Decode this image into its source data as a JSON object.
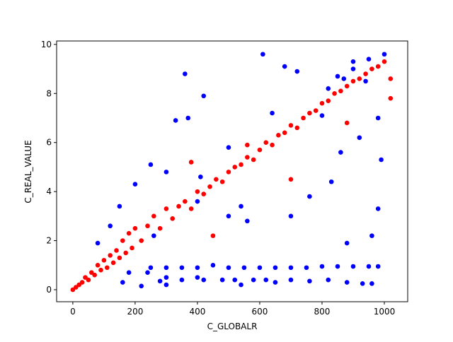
{
  "chart_data": {
    "type": "scatter",
    "x_label": "C_GLOBALR",
    "y_label": "C_REAL_VALUE",
    "xlim": [
      -52,
      1075
    ],
    "ylim": [
      -0.49,
      10.14
    ],
    "xticks": [
      0,
      200,
      400,
      600,
      800,
      1000
    ],
    "yticks": [
      0,
      2,
      4,
      6,
      8,
      10
    ],
    "series": [
      {
        "color": "#0000ff",
        "x": [
          360,
          610,
          420,
          370,
          330,
          680,
          720,
          900,
          1000,
          980,
          990,
          960,
          980,
          250,
          150,
          120,
          80,
          200,
          300,
          410,
          500,
          540,
          560,
          700,
          760,
          830,
          880,
          860,
          920,
          940,
          850,
          800,
          640,
          500,
          400,
          260,
          180,
          160,
          220,
          300,
          400,
          450,
          250,
          300,
          350,
          400,
          500,
          550,
          600,
          650,
          700,
          750,
          800,
          850,
          900,
          950,
          980,
          350,
          420,
          480,
          520,
          580,
          620,
          700,
          760,
          820,
          880,
          930,
          960,
          650,
          540,
          300,
          240,
          280,
          900,
          950,
          870,
          820
        ],
        "y": [
          8.8,
          9.6,
          7.9,
          7.0,
          6.9,
          9.1,
          8.9,
          9.3,
          9.6,
          7.0,
          5.3,
          2.2,
          3.3,
          5.1,
          3.4,
          2.6,
          1.9,
          4.3,
          4.8,
          4.6,
          5.8,
          3.4,
          2.8,
          3.0,
          3.8,
          4.4,
          1.9,
          5.6,
          6.2,
          8.5,
          8.7,
          7.1,
          7.2,
          3.0,
          3.6,
          2.2,
          0.7,
          0.3,
          0.15,
          0.2,
          0.5,
          1.0,
          0.9,
          0.9,
          0.9,
          0.9,
          0.9,
          0.9,
          0.9,
          0.9,
          0.9,
          0.9,
          0.95,
          0.95,
          0.95,
          0.95,
          0.95,
          0.4,
          0.4,
          0.4,
          0.4,
          0.4,
          0.4,
          0.4,
          0.35,
          0.4,
          0.3,
          0.25,
          0.25,
          0.3,
          0.2,
          0.5,
          0.7,
          0.35,
          9.0,
          9.4,
          8.6,
          8.2
        ]
      },
      {
        "color": "#ff0000",
        "x": [
          0,
          10,
          20,
          30,
          40,
          50,
          60,
          70,
          80,
          90,
          100,
          110,
          120,
          130,
          140,
          150,
          160,
          170,
          180,
          190,
          200,
          220,
          240,
          260,
          280,
          300,
          320,
          340,
          360,
          380,
          400,
          420,
          440,
          460,
          480,
          500,
          520,
          540,
          560,
          580,
          600,
          620,
          640,
          660,
          680,
          700,
          720,
          740,
          760,
          780,
          800,
          820,
          840,
          860,
          880,
          900,
          920,
          940,
          960,
          980,
          1000,
          1020,
          1020,
          450,
          560,
          700,
          880,
          380
        ],
        "y": [
          0,
          0.1,
          0.2,
          0.3,
          0.5,
          0.4,
          0.7,
          0.6,
          1.0,
          0.8,
          1.2,
          0.9,
          1.4,
          1.1,
          1.6,
          1.3,
          2.0,
          1.5,
          2.3,
          1.7,
          2.5,
          2.0,
          2.6,
          3.0,
          2.5,
          3.3,
          2.9,
          3.4,
          3.6,
          3.3,
          4.0,
          3.9,
          4.2,
          4.5,
          4.4,
          4.8,
          5.0,
          5.1,
          5.4,
          5.3,
          5.7,
          6.0,
          5.9,
          6.3,
          6.4,
          6.7,
          6.6,
          7.0,
          7.2,
          7.3,
          7.6,
          7.7,
          8.0,
          8.1,
          8.3,
          8.5,
          8.6,
          8.8,
          9.0,
          9.1,
          9.3,
          8.6,
          7.8,
          2.2,
          5.9,
          4.5,
          6.8,
          5.2
        ]
      }
    ]
  }
}
